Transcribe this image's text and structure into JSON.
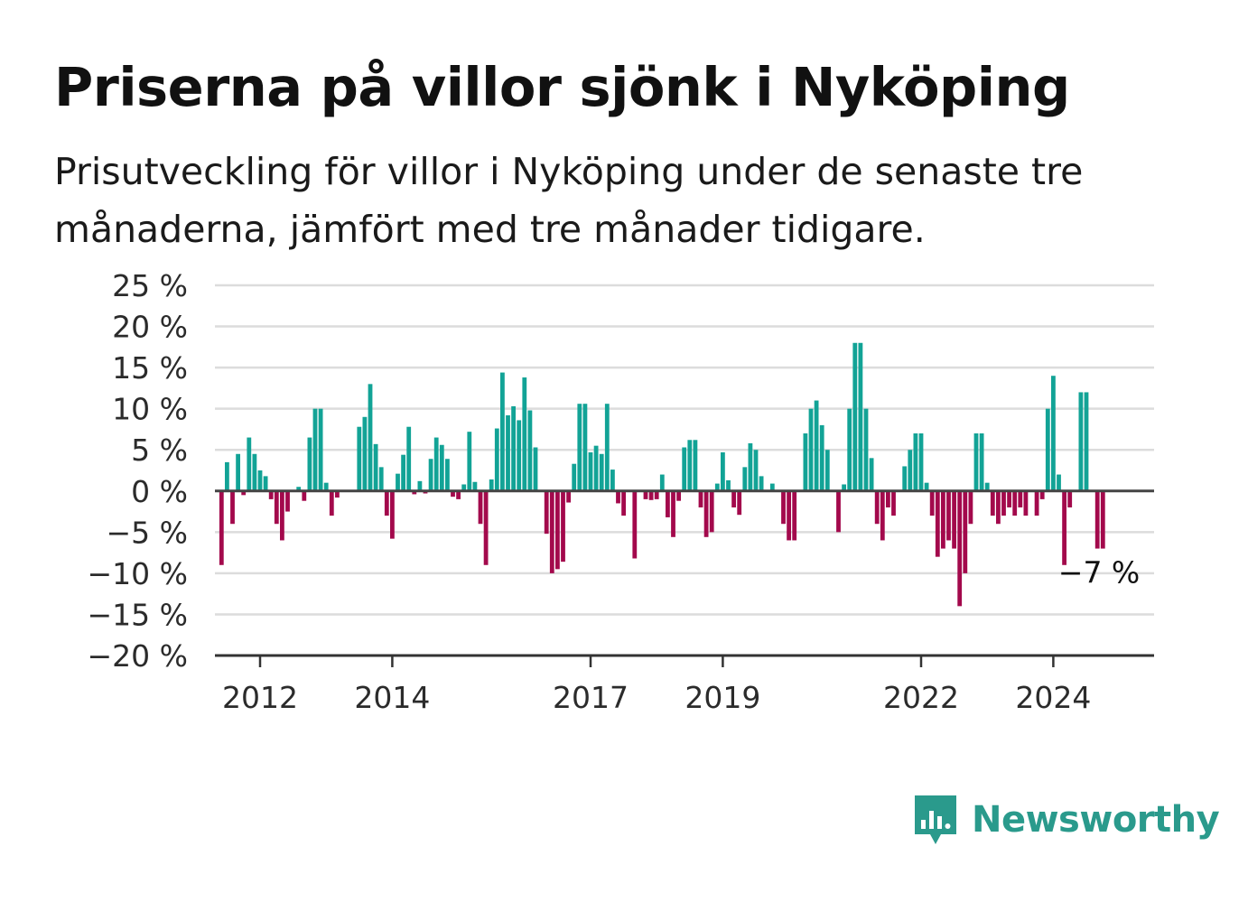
{
  "title": "Priserna på villor sjönk i Nyköping",
  "subtitle": "Prisutveckling för villor i Nyköping under de senaste tre månaderna, jämfört med tre månader tidigare.",
  "brand": {
    "name": "Newsworthy",
    "icon": "bar-chart-speech-bubble-icon"
  },
  "colors": {
    "positive": "#12a396",
    "negative": "#a3094c",
    "grid": "#dcdcdc",
    "axis": "#333333",
    "brand": "#2a9a8c"
  },
  "chart_data": {
    "type": "bar",
    "ylim": [
      -20,
      25
    ],
    "yticks": [
      25,
      20,
      15,
      10,
      5,
      0,
      -5,
      -10,
      -15,
      -20
    ],
    "ytick_labels": [
      "25 %",
      "20 %",
      "15 %",
      "10 %",
      "5 %",
      "0 %",
      "−5 %",
      "−10 %",
      "−15 %",
      "−20 %"
    ],
    "xticks": [
      "2012",
      "2014",
      "2017",
      "2019",
      "2022",
      "2024"
    ],
    "start": "2011-06",
    "values": [
      -9,
      3.5,
      -4,
      4.5,
      -0.5,
      6.5,
      4.5,
      2.5,
      1.8,
      -1,
      -4,
      -6,
      -2.5,
      0,
      0.5,
      -1.2,
      6.5,
      10,
      10,
      1,
      -3,
      -0.8,
      0,
      0,
      0,
      7.8,
      9,
      13,
      5.7,
      2.9,
      -3,
      -5.8,
      2.1,
      4.4,
      7.8,
      -0.4,
      1.2,
      -0.3,
      3.9,
      6.5,
      5.6,
      3.9,
      -0.7,
      -1,
      0.8,
      7.2,
      1.1,
      -4,
      -9,
      1.4,
      7.6,
      14.4,
      9.2,
      10.3,
      8.6,
      13.8,
      9.8,
      5.3,
      0,
      -5.2,
      -10,
      -9.5,
      -8.6,
      -1.4,
      3.3,
      10.6,
      10.6,
      4.7,
      5.5,
      4.5,
      10.6,
      2.6,
      -1.5,
      -3,
      0,
      -8.2,
      0.1,
      -1,
      -1.1,
      -1,
      2,
      -3.2,
      -5.6,
      -1.2,
      5.3,
      6.2,
      6.2,
      -2,
      -5.6,
      -5,
      0.9,
      4.7,
      1.3,
      -2,
      -2.9,
      2.9,
      5.8,
      5,
      1.8,
      0,
      0.9,
      0,
      -4,
      -6,
      -6,
      0,
      7,
      10,
      11,
      8,
      5,
      0,
      -5,
      0.8,
      10,
      18,
      18,
      10,
      4,
      -4,
      -6,
      -2,
      -3,
      0,
      3,
      5,
      7,
      7,
      1,
      -3,
      -8,
      -7,
      -6,
      -7,
      -14,
      -10,
      -4,
      7,
      7,
      1,
      -3,
      -4,
      -3,
      -2,
      -3,
      -2,
      -3,
      0,
      -3,
      -1,
      10,
      14,
      2,
      -9,
      -2,
      0,
      12,
      12,
      0,
      -7,
      -7
    ],
    "last_value_label": "−7 %"
  }
}
